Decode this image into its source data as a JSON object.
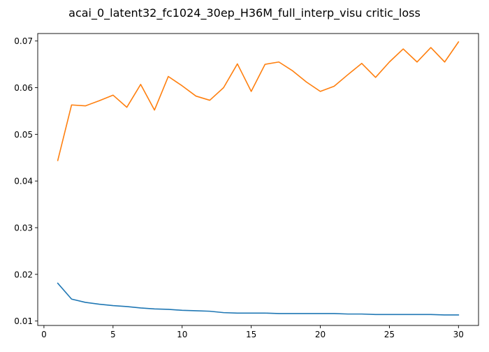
{
  "chart_data": {
    "type": "line",
    "title": "acai_0_latent32_fc1024_30ep_H36M_full_interp_visu critic_loss",
    "xlabel": "",
    "ylabel": "",
    "xlim": [
      -0.45,
      31.45
    ],
    "ylim": [
      0.00905,
      0.0716
    ],
    "xticks": [
      0,
      5,
      10,
      15,
      20,
      25,
      30
    ],
    "yticks": [
      0.01,
      0.02,
      0.03,
      0.04,
      0.05,
      0.06,
      0.07
    ],
    "ytick_labels": [
      "0.01",
      "0.02",
      "0.03",
      "0.04",
      "0.05",
      "0.06",
      "0.07"
    ],
    "grid": false,
    "legend": null,
    "x": [
      1,
      2,
      3,
      4,
      5,
      6,
      7,
      8,
      9,
      10,
      11,
      12,
      13,
      14,
      15,
      16,
      17,
      18,
      19,
      20,
      21,
      22,
      23,
      24,
      25,
      26,
      27,
      28,
      29,
      30
    ],
    "series": [
      {
        "color": "#1f77b4",
        "values": [
          0.0181,
          0.0147,
          0.014,
          0.0136,
          0.0133,
          0.0131,
          0.0128,
          0.0126,
          0.0125,
          0.0123,
          0.0122,
          0.0121,
          0.0118,
          0.0117,
          0.0117,
          0.0117,
          0.0116,
          0.0116,
          0.0116,
          0.0116,
          0.0116,
          0.0115,
          0.0115,
          0.0114,
          0.0114,
          0.0114,
          0.0114,
          0.0114,
          0.0113,
          0.0113
        ]
      },
      {
        "color": "#ff7f0e",
        "values": [
          0.0444,
          0.0563,
          0.0561,
          0.0572,
          0.0584,
          0.0558,
          0.0607,
          0.0552,
          0.0624,
          0.0604,
          0.0582,
          0.0573,
          0.06,
          0.0651,
          0.0592,
          0.065,
          0.0655,
          0.0636,
          0.0612,
          0.0592,
          0.0603,
          0.0628,
          0.0652,
          0.0622,
          0.0655,
          0.0683,
          0.0655,
          0.0686,
          0.0655,
          0.0698
        ]
      }
    ]
  }
}
